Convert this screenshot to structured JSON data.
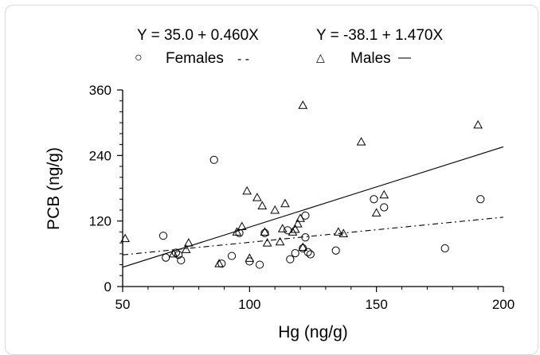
{
  "chart_data": {
    "type": "scatter",
    "xlabel": "Hg (ng/g)",
    "ylabel": "PCB (ng/g)",
    "xlim": [
      50,
      200
    ],
    "ylim": [
      0,
      360
    ],
    "x_ticks": [
      50,
      100,
      150,
      200
    ],
    "y_ticks": [
      0,
      120,
      240,
      360
    ],
    "x_tick_labels": [
      "50",
      "100",
      "150",
      "200"
    ],
    "y_tick_labels": [
      "0",
      "120",
      "240",
      "360"
    ],
    "grid": false,
    "legend": {
      "placement": "top",
      "entries": [
        {
          "equation": "Y = 35.0 + 0.460X",
          "marker_symbol": "○",
          "label": "Females",
          "line_symbol": "- -"
        },
        {
          "equation": "Y = -38.1 + 1.470X",
          "marker_symbol": "△",
          "label": "Males",
          "line_symbol": "—"
        }
      ]
    },
    "series": [
      {
        "name": "Females",
        "marker": "circle",
        "fit": {
          "intercept": 35.0,
          "slope": 0.46,
          "style": "dashed"
        },
        "points": [
          [
            66,
            93
          ],
          [
            67,
            53
          ],
          [
            71,
            62
          ],
          [
            72,
            58
          ],
          [
            73,
            48
          ],
          [
            86,
            232
          ],
          [
            89,
            42
          ],
          [
            93,
            56
          ],
          [
            96,
            98
          ],
          [
            100,
            46
          ],
          [
            104,
            40
          ],
          [
            106,
            98
          ],
          [
            116,
            50
          ],
          [
            118,
            61
          ],
          [
            121,
            70
          ],
          [
            122,
            130
          ],
          [
            122,
            90
          ],
          [
            123,
            63
          ],
          [
            124,
            59
          ],
          [
            134,
            66
          ],
          [
            149,
            160
          ],
          [
            153,
            145
          ],
          [
            177,
            70
          ],
          [
            191,
            160
          ],
          [
            115,
            103
          ]
        ]
      },
      {
        "name": "Males",
        "marker": "triangle",
        "fit": {
          "intercept": -38.1,
          "slope": 1.47,
          "style": "solid"
        },
        "points": [
          [
            51,
            88
          ],
          [
            70,
            60
          ],
          [
            75,
            68
          ],
          [
            76,
            80
          ],
          [
            88,
            42
          ],
          [
            95,
            100
          ],
          [
            97,
            110
          ],
          [
            99,
            175
          ],
          [
            100,
            52
          ],
          [
            103,
            163
          ],
          [
            105,
            148
          ],
          [
            106,
            100
          ],
          [
            107,
            80
          ],
          [
            110,
            140
          ],
          [
            112,
            82
          ],
          [
            113,
            106
          ],
          [
            114,
            152
          ],
          [
            117,
            100
          ],
          [
            118,
            105
          ],
          [
            119,
            115
          ],
          [
            120,
            125
          ],
          [
            121,
            332
          ],
          [
            121,
            72
          ],
          [
            135,
            100
          ],
          [
            137,
            97
          ],
          [
            144,
            265
          ],
          [
            150,
            135
          ],
          [
            153,
            168
          ],
          [
            190,
            296
          ]
        ]
      }
    ]
  }
}
